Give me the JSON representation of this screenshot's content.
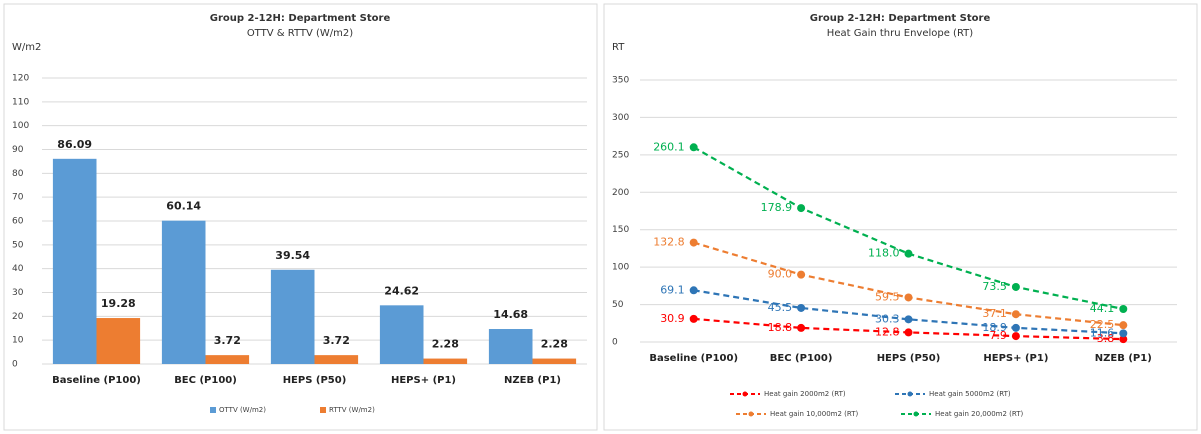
{
  "chart_data": [
    {
      "type": "bar",
      "title": "Group 2-12H: Department Store",
      "subtitle": "OTTV & RTTV (W/m2)",
      "y_label": "W/m2",
      "categories": [
        "Baseline (P100)",
        "BEC (P100)",
        "HEPS (P50)",
        "HEPS+ (P1)",
        "NZEB (P1)"
      ],
      "series": [
        {
          "name": "OTTV (W/m2)",
          "color": "#5b9bd5",
          "values": [
            86.09,
            60.14,
            39.54,
            24.62,
            14.68
          ]
        },
        {
          "name": "RTTV (W/m2)",
          "color": "#ed7d31",
          "values": [
            19.28,
            3.72,
            3.72,
            2.28,
            2.28
          ]
        }
      ],
      "ylim": [
        0,
        120
      ],
      "yticks": [
        0,
        10,
        20,
        30,
        40,
        50,
        60,
        70,
        80,
        90,
        100,
        110,
        120
      ],
      "grid": true,
      "legend": "bottom"
    },
    {
      "type": "line",
      "title": "Group 2-12H: Department Store",
      "subtitle": "Heat Gain thru Envelope (RT)",
      "y_label": "RT",
      "categories": [
        "Baseline (P100)",
        "BEC (P100)",
        "HEPS (P50)",
        "HEPS+ (P1)",
        "NZEB (P1)"
      ],
      "series": [
        {
          "name": "Heat gain 2000m2 (RT)",
          "color": "#ff0000",
          "values": [
            30.9,
            18.8,
            12.8,
            7.9,
            3.8
          ],
          "value_labels": [
            "30.9",
            "18.8",
            "12.8",
            "7.9",
            "3.8"
          ]
        },
        {
          "name": "Heat gain 5000m2 (RT)",
          "color": "#2e75b6",
          "values": [
            69.1,
            45.5,
            30.3,
            18.9,
            11.6
          ],
          "value_labels": [
            "69.1",
            "45.5",
            "30.3",
            "18.9",
            "11.6"
          ]
        },
        {
          "name": "Heat gain 10,000m2 (RT)",
          "color": "#ed7d31",
          "values": [
            132.8,
            90.0,
            59.5,
            37.1,
            22.5
          ],
          "value_labels": [
            "132.8",
            "90.0",
            "59.5",
            "37.1",
            "22.5"
          ]
        },
        {
          "name": "Heat gain 20,000m2 (RT)",
          "color": "#00b050",
          "values": [
            260.1,
            178.9,
            118.0,
            73.5,
            44.1
          ],
          "value_labels": [
            "260.1",
            "178.9",
            "118.0",
            "73.5",
            "44.1"
          ]
        }
      ],
      "ylim": [
        0,
        350
      ],
      "yticks": [
        0,
        50,
        100,
        150,
        200,
        250,
        300,
        350
      ],
      "grid": true,
      "legend": "bottom"
    }
  ]
}
